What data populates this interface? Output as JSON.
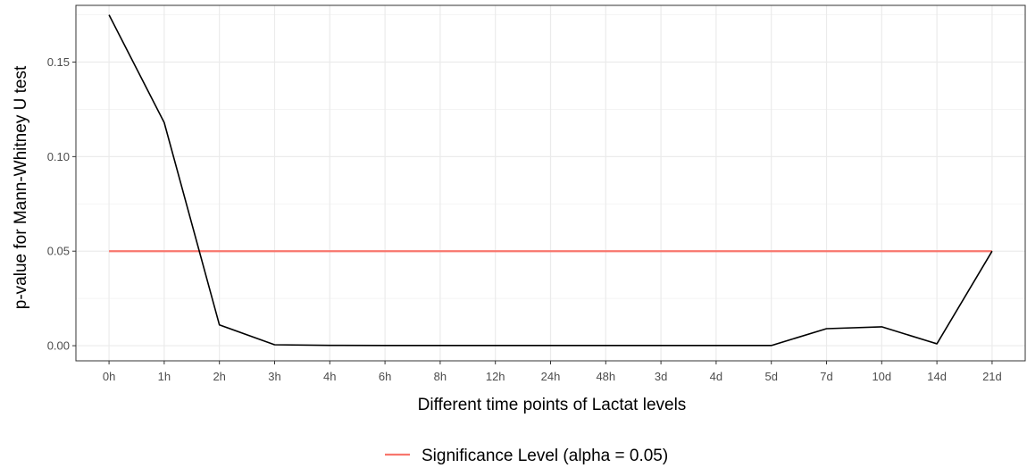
{
  "chart_data": {
    "type": "line",
    "title": "",
    "xlabel": "Different time points of Lactat levels",
    "ylabel": "p-value for Mann-Whitney U test",
    "categories": [
      "0h",
      "1h",
      "2h",
      "3h",
      "4h",
      "6h",
      "8h",
      "12h",
      "24h",
      "48h",
      "3d",
      "4d",
      "5d",
      "7d",
      "10d",
      "14d",
      "21d"
    ],
    "ylim": [
      -0.008,
      0.18
    ],
    "yticks": [
      0.0,
      0.05,
      0.1,
      0.15
    ],
    "ytick_labels": [
      "0.00",
      "0.05",
      "0.10",
      "0.15"
    ],
    "grid": true,
    "series": [
      {
        "values": [
          0.175,
          0.118,
          0.011,
          0.0005,
          0.0002,
          0.0001,
          0.0001,
          0.0001,
          0.0001,
          0.0001,
          0.0001,
          0.0001,
          0.0001,
          0.009,
          0.01,
          0.001,
          0.05
        ],
        "color": "#000000"
      }
    ],
    "reference_line": {
      "name": "Significance Level (alpha = 0.05)",
      "value": 0.05,
      "color": "#f8766d"
    },
    "legend_position": "bottom"
  }
}
